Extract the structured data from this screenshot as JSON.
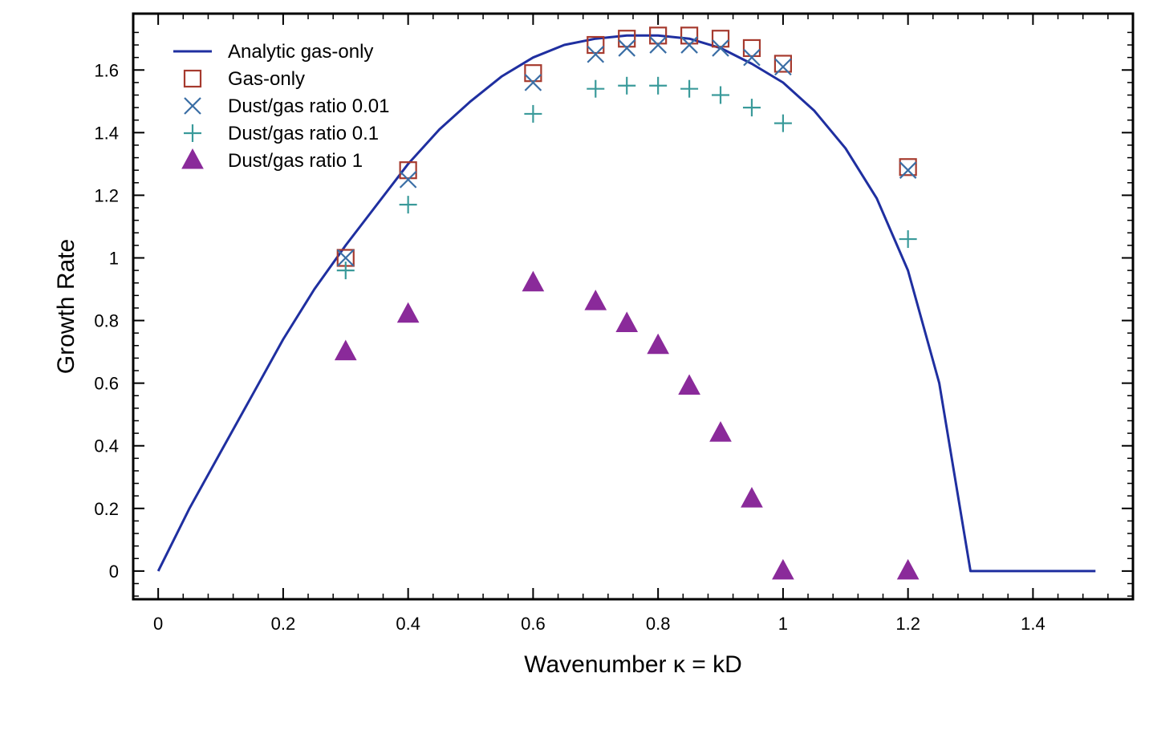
{
  "chart_data": {
    "type": "scatter",
    "title": "",
    "xlabel": "Wavenumber κ = kD",
    "ylabel": "Growth Rate",
    "xlim": [
      -0.04,
      1.56
    ],
    "ylim": [
      -0.09,
      1.78
    ],
    "xticks": [
      0,
      0.2,
      0.4,
      0.6,
      0.8,
      1,
      1.2,
      1.4
    ],
    "xtick_labels": [
      "0",
      "0.2",
      "0.4",
      "0.6",
      "0.8",
      "1",
      "1.2",
      "1.4"
    ],
    "yticks": [
      0,
      0.2,
      0.4,
      0.6,
      0.8,
      1,
      1.2,
      1.4,
      1.6
    ],
    "ytick_labels": [
      "0",
      "0.2",
      "0.4",
      "0.6",
      "0.8",
      "1",
      "1.2",
      "1.4",
      "1.6"
    ],
    "legend_position": "top-left",
    "series": [
      {
        "name": "Analytic gas-only",
        "kind": "line",
        "color": "#1f2fa0",
        "x": [
          0,
          0.05,
          0.1,
          0.15,
          0.2,
          0.25,
          0.3,
          0.35,
          0.4,
          0.45,
          0.5,
          0.55,
          0.6,
          0.65,
          0.7,
          0.75,
          0.8,
          0.85,
          0.9,
          0.95,
          1.0,
          1.05,
          1.1,
          1.15,
          1.2,
          1.25,
          1.3,
          1.35,
          1.4,
          1.45,
          1.5
        ],
        "values": [
          0,
          0.2,
          0.38,
          0.56,
          0.74,
          0.9,
          1.04,
          1.17,
          1.3,
          1.41,
          1.5,
          1.58,
          1.64,
          1.68,
          1.7,
          1.71,
          1.71,
          1.7,
          1.67,
          1.62,
          1.56,
          1.47,
          1.35,
          1.19,
          0.96,
          0.6,
          0.0,
          0.0,
          0.0,
          0.0,
          0.0
        ]
      },
      {
        "name": "Gas-only",
        "kind": "marker",
        "marker": "square",
        "color": "#a63a2e",
        "x": [
          0.3,
          0.4,
          0.6,
          0.7,
          0.75,
          0.8,
          0.85,
          0.9,
          0.95,
          1.0,
          1.2
        ],
        "values": [
          1.0,
          1.28,
          1.59,
          1.68,
          1.7,
          1.71,
          1.71,
          1.7,
          1.67,
          1.62,
          1.29
        ]
      },
      {
        "name": "Dust/gas ratio 0.01",
        "kind": "marker",
        "marker": "x",
        "color": "#3a6ea5",
        "x": [
          0.3,
          0.4,
          0.6,
          0.7,
          0.75,
          0.8,
          0.85,
          0.9,
          0.95,
          1.0,
          1.2
        ],
        "values": [
          1.0,
          1.25,
          1.56,
          1.65,
          1.67,
          1.68,
          1.68,
          1.67,
          1.64,
          1.61,
          1.28
        ]
      },
      {
        "name": "Dust/gas ratio 0.1",
        "kind": "marker",
        "marker": "plus",
        "color": "#3a9a9a",
        "x": [
          0.3,
          0.4,
          0.6,
          0.7,
          0.75,
          0.8,
          0.85,
          0.9,
          0.95,
          1.0,
          1.2
        ],
        "values": [
          0.96,
          1.17,
          1.46,
          1.54,
          1.55,
          1.55,
          1.54,
          1.52,
          1.48,
          1.43,
          1.06
        ]
      },
      {
        "name": "Dust/gas ratio 1",
        "kind": "marker",
        "marker": "triangle",
        "color": "#8a2a9a",
        "x": [
          0.3,
          0.4,
          0.6,
          0.7,
          0.75,
          0.8,
          0.85,
          0.9,
          0.95,
          1.0,
          1.2
        ],
        "values": [
          0.7,
          0.82,
          0.92,
          0.86,
          0.79,
          0.72,
          0.59,
          0.44,
          0.23,
          0.0,
          0.0
        ]
      }
    ]
  }
}
